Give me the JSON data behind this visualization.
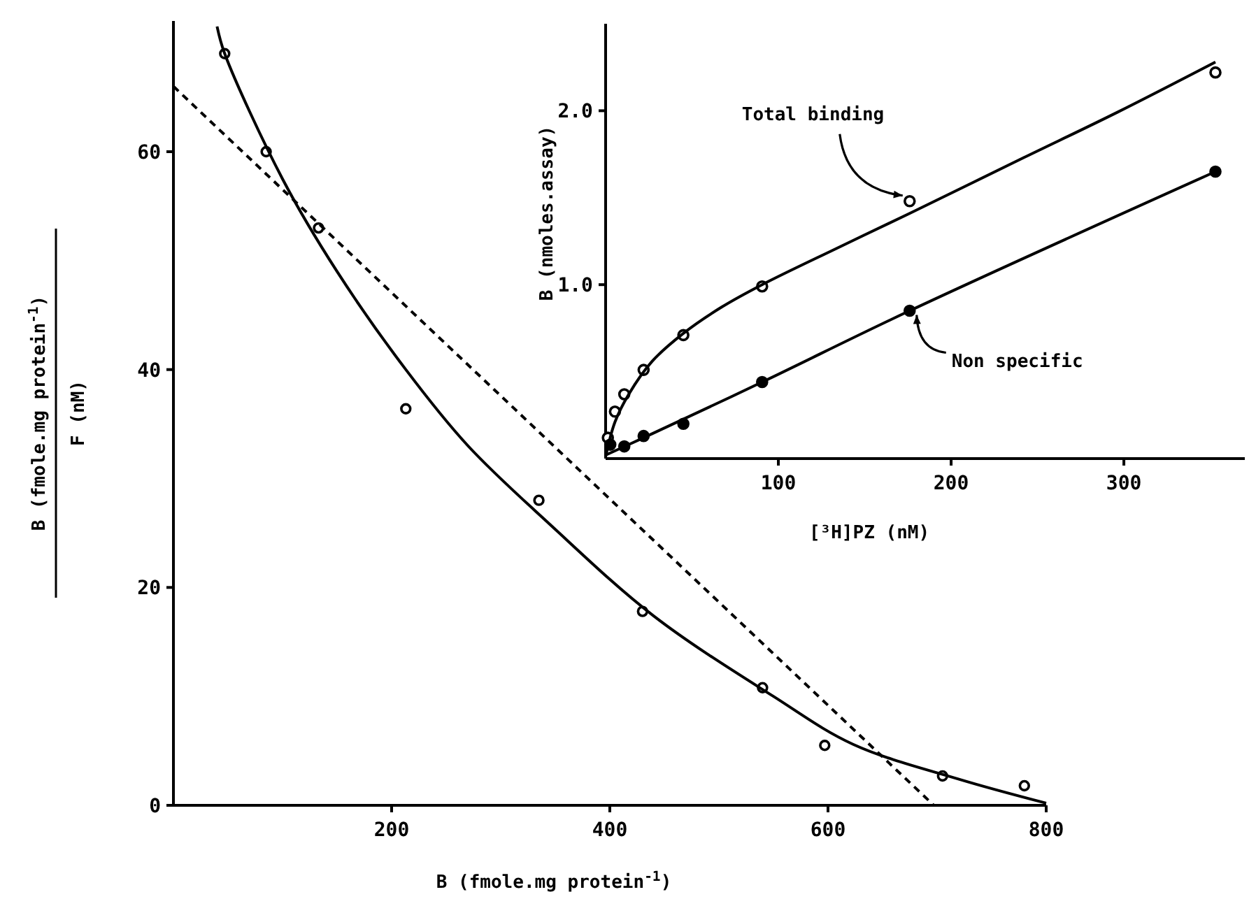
{
  "chart_data": [
    {
      "type": "scatter",
      "xlabel": "B (fmole.mg protein$^{-1}$)",
      "ylabel": "B (fmole.mg protein$^{-1}$)\nF (nM)",
      "xlim": [
        0,
        800
      ],
      "ylim": [
        0,
        72
      ],
      "xticks": [
        200,
        400,
        600,
        800
      ],
      "yticks": [
        0,
        20,
        40,
        60
      ],
      "marker": "circle",
      "series": [
        {
          "color": "#000000",
          "x": [
            47,
            85,
            133,
            213,
            335,
            430,
            540,
            597,
            705,
            780
          ],
          "values": [
            69,
            60,
            53,
            36.4,
            28,
            17.8,
            10.8,
            5.5,
            2.7,
            1.8
          ]
        },
        {
          "type": "line",
          "color": "#000000",
          "marker": "none",
          "line_style": "solid",
          "x": [
            40,
            47,
            100,
            150,
            213,
            270,
            345,
            440,
            550,
            623,
            720,
            800
          ],
          "values": [
            71.5,
            69,
            57.5,
            49,
            40,
            33,
            25.8,
            17.4,
            10,
            5.6,
            2.4,
            0.2
          ]
        },
        {
          "type": "line",
          "color": "#000000",
          "marker": "none",
          "line_style": "dashed",
          "x": [
            0,
            697
          ],
          "values": [
            66,
            0
          ]
        }
      ]
    },
    {
      "type": "scatter",
      "xlabel": "[³H]PZ (nM)",
      "ylabel": "B (nmoles.assay)",
      "xlim": [
        0,
        370
      ],
      "ylim": [
        0,
        2.5
      ],
      "xticks": [
        100,
        200,
        300
      ],
      "yticks": [
        {
          "value": 1,
          "label": "1.0"
        },
        {
          "value": 2,
          "label": "2.0"
        }
      ],
      "marker": "circle",
      "annotations": [
        {
          "text": "Total binding",
          "x": 176,
          "y": 1.48
        },
        {
          "text": "Non specific",
          "x": 176,
          "y": 0.85
        }
      ],
      "series": [
        {
          "color": "#000000",
          "x": [
            1.3,
            5.4,
            10.8,
            22,
            45,
            90.6,
            176,
            353
          ],
          "values": [
            0.12,
            0.27,
            0.37,
            0.51,
            0.71,
            0.99,
            1.48,
            2.22
          ]
        },
        {
          "color": "#000000",
          "x": [
            2.7,
            10.8,
            22,
            45,
            90.6,
            176,
            353
          ],
          "values": [
            0.08,
            0.07,
            0.13,
            0.2,
            0.44,
            0.85,
            1.65
          ]
        },
        {
          "type": "line",
          "color": "#000000",
          "marker": "none",
          "line_style": "solid",
          "x": [
            0,
            5.4,
            13.4,
            27,
            45,
            67,
            90.6,
            134,
            176,
            242,
            296,
            353
          ],
          "values": [
            0.01,
            0.21,
            0.37,
            0.56,
            0.72,
            0.87,
            1.0,
            1.21,
            1.41,
            1.73,
            1.99,
            2.28
          ]
        },
        {
          "type": "line",
          "color": "#000000",
          "marker": "none",
          "line_style": "solid",
          "x": [
            0,
            22,
            90.6,
            176,
            353
          ],
          "values": [
            0.02,
            0.12,
            0.44,
            0.85,
            1.65
          ]
        }
      ]
    }
  ]
}
